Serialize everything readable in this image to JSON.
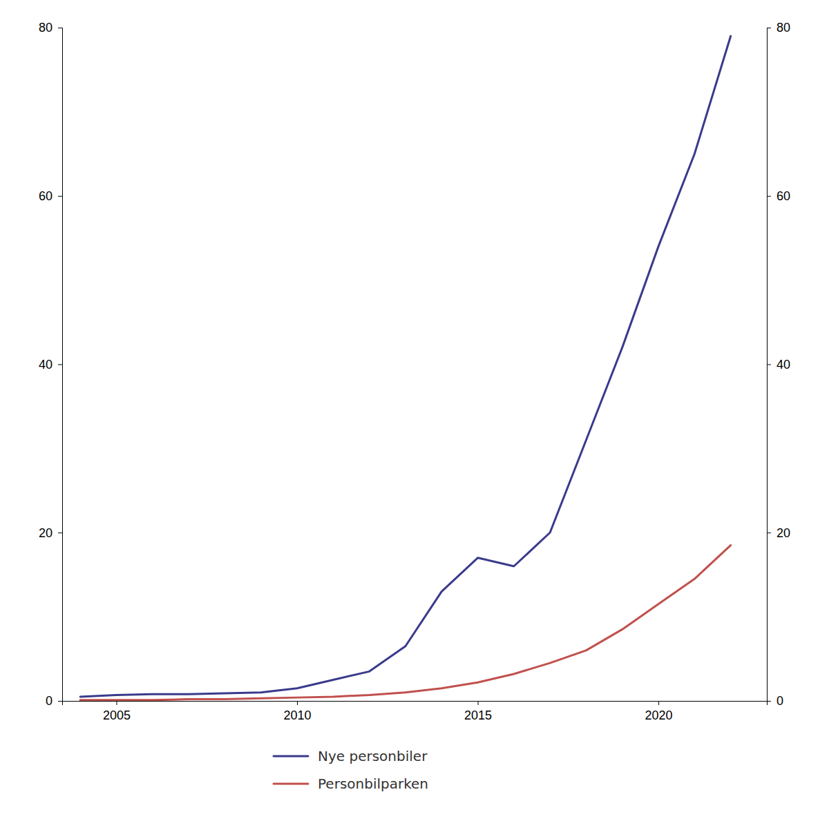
{
  "chart_data": {
    "type": "line",
    "x": [
      2004,
      2005,
      2006,
      2007,
      2008,
      2009,
      2010,
      2011,
      2012,
      2013,
      2014,
      2015,
      2016,
      2017,
      2018,
      2019,
      2020,
      2021,
      2022
    ],
    "series": [
      {
        "name": "Nye personbiler",
        "color": "#3a3a8c",
        "values": [
          0.5,
          0.7,
          0.8,
          0.8,
          0.9,
          1.0,
          1.5,
          2.5,
          3.5,
          6.5,
          13.0,
          17.0,
          16.0,
          20.0,
          31.0,
          42.0,
          54.0,
          65.0,
          79.0
        ]
      },
      {
        "name": "Personbilparken",
        "color": "#c0504d",
        "values": [
          0.1,
          0.1,
          0.1,
          0.2,
          0.2,
          0.3,
          0.4,
          0.5,
          0.7,
          1.0,
          1.5,
          2.2,
          3.2,
          4.5,
          6.0,
          8.5,
          11.5,
          14.5,
          18.5
        ]
      }
    ],
    "xlim": [
      2003.5,
      2023.0
    ],
    "xticks": [
      2005,
      2010,
      2015,
      2020
    ],
    "ylim": [
      0,
      80
    ],
    "yticks": [
      0,
      20,
      40,
      60,
      80
    ],
    "y2lim": [
      0,
      80
    ],
    "y2ticks": [
      0,
      20,
      40,
      60,
      80
    ],
    "grid": false,
    "legend": "bottom"
  }
}
